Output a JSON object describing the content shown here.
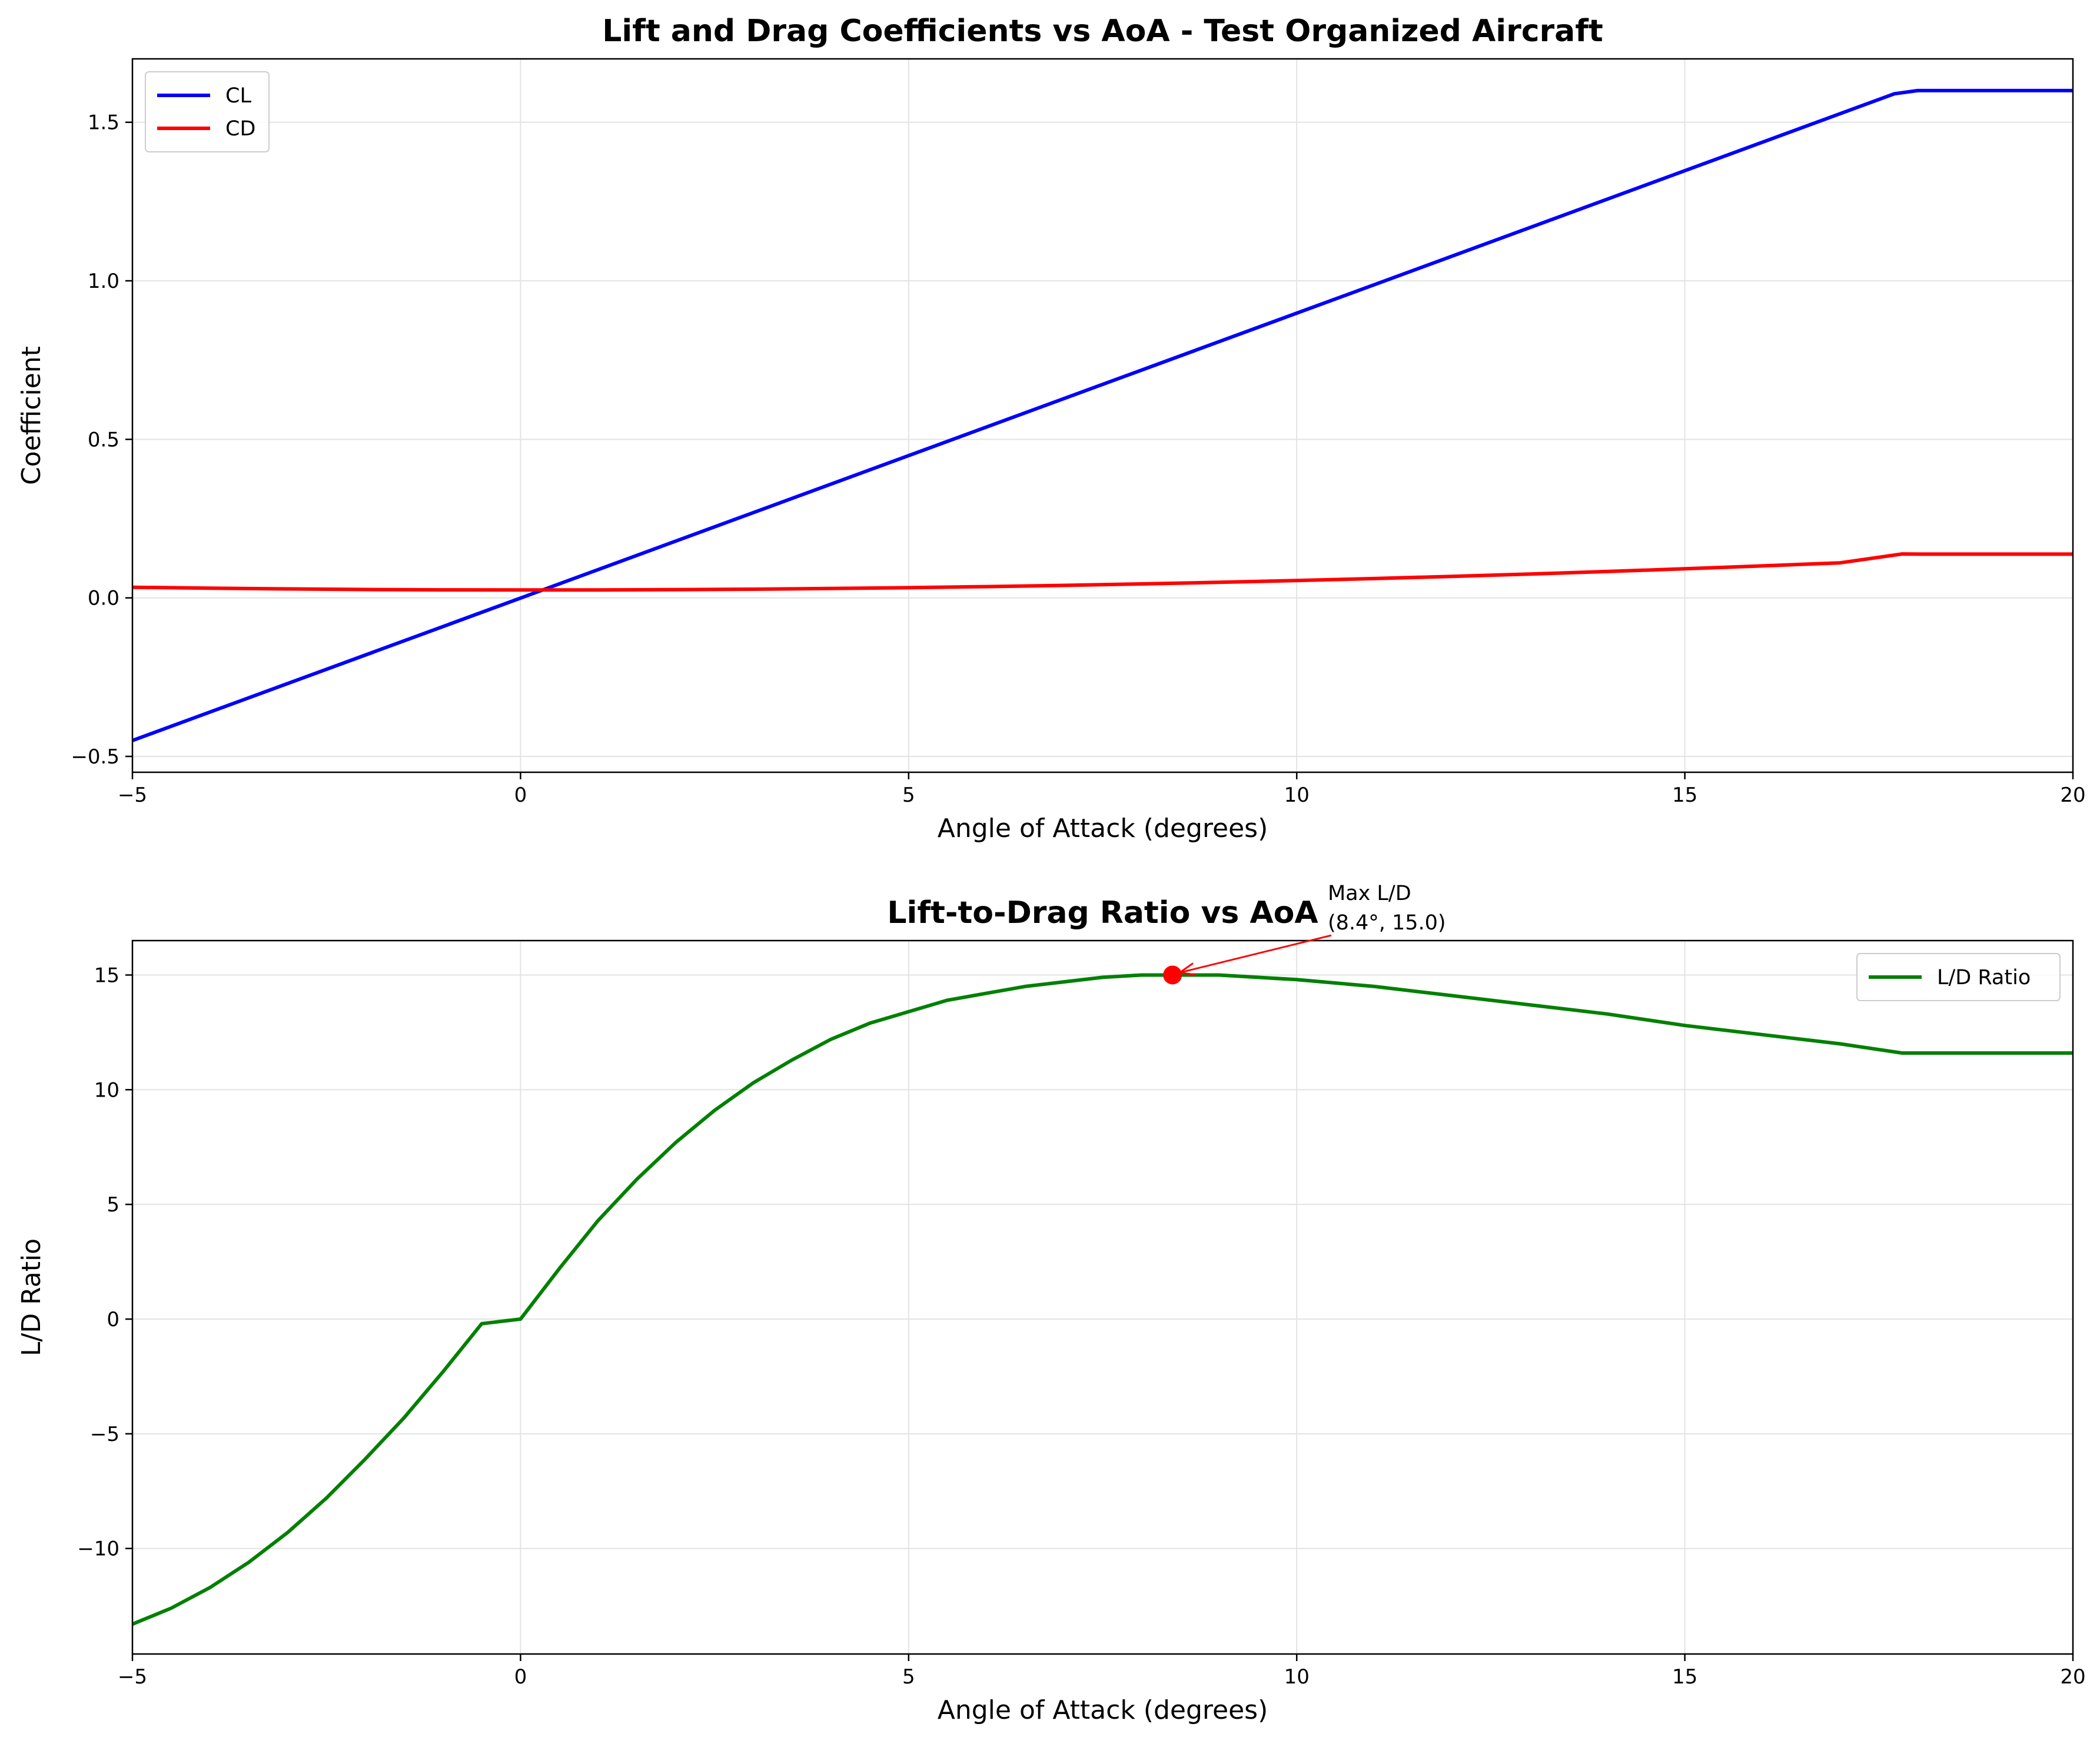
{
  "chart_data": [
    {
      "type": "line",
      "title": "Lift and Drag Coefficients vs AoA - Test Organized Aircraft",
      "xlabel": "Angle of Attack (degrees)",
      "ylabel": "Coefficient",
      "xlim": [
        -5,
        20
      ],
      "ylim": [
        -0.55,
        1.7
      ],
      "xticks": [
        -5,
        0,
        5,
        10,
        15,
        20
      ],
      "xtick_labels": [
        "−5",
        "0",
        "5",
        "10",
        "15",
        "20"
      ],
      "yticks": [
        -0.5,
        0.0,
        0.5,
        1.0,
        1.5
      ],
      "ytick_labels": [
        "−0.5",
        "0.0",
        "0.5",
        "1.0",
        "1.5"
      ],
      "grid": true,
      "legend": "top-left",
      "series": [
        {
          "name": "CL",
          "color": "#0000ff",
          "x": [
            -5,
            17.7,
            18,
            20
          ],
          "y": [
            -0.45,
            1.59,
            1.6,
            1.6
          ]
        },
        {
          "name": "CD",
          "color": "#ff0000",
          "x": [
            -5,
            -4,
            -3,
            -2,
            -1,
            0,
            1,
            2,
            3,
            4,
            5,
            6,
            7,
            8,
            9,
            10,
            11,
            12,
            13,
            14,
            15,
            16,
            17,
            17.8,
            18,
            20
          ],
          "y": [
            0.0335,
            0.0305,
            0.0282,
            0.0265,
            0.0254,
            0.025,
            0.0252,
            0.026,
            0.0274,
            0.0295,
            0.0322,
            0.0355,
            0.0394,
            0.044,
            0.049,
            0.0547,
            0.061,
            0.0678,
            0.0752,
            0.0832,
            0.0917,
            0.1009,
            0.1105,
            0.1385,
            0.138,
            0.138
          ]
        }
      ]
    },
    {
      "type": "line",
      "title": "Lift-to-Drag Ratio vs AoA",
      "xlabel": "Angle of Attack (degrees)",
      "ylabel": "L/D Ratio",
      "xlim": [
        -5,
        20
      ],
      "ylim": [
        -14.6,
        16.5
      ],
      "xticks": [
        -5,
        0,
        5,
        10,
        15,
        20
      ],
      "xtick_labels": [
        "−5",
        "0",
        "5",
        "10",
        "15",
        "20"
      ],
      "yticks": [
        -10,
        -5,
        0,
        5,
        10,
        15
      ],
      "ytick_labels": [
        "−10",
        "−5",
        "0",
        "5",
        "10",
        "15"
      ],
      "grid": true,
      "legend": "top-right",
      "series": [
        {
          "name": "L/D Ratio",
          "color": "#008000",
          "x": [
            -5,
            -4.5,
            -4,
            -3.5,
            -3,
            -2.5,
            -2,
            -1.5,
            -1,
            -0.5,
            0,
            0.5,
            1,
            1.5,
            2,
            2.5,
            3,
            3.5,
            4,
            4.5,
            5,
            5.5,
            6,
            6.5,
            7,
            7.5,
            8,
            8.4,
            9,
            10,
            11,
            12,
            13,
            14,
            15,
            16,
            17,
            17.8,
            18,
            19,
            20
          ],
          "y": [
            -13.3,
            -12.6,
            -11.7,
            -10.6,
            -9.3,
            -7.8,
            -6.1,
            -4.3,
            -2.3,
            -0.2,
            0,
            2.2,
            4.3,
            6.1,
            7.7,
            9.1,
            10.3,
            11.3,
            12.2,
            12.9,
            13.4,
            13.9,
            14.2,
            14.5,
            14.7,
            14.9,
            15.0,
            15.0,
            15.0,
            14.8,
            14.5,
            14.1,
            13.7,
            13.3,
            12.8,
            12.4,
            12.0,
            11.6,
            11.6,
            11.6,
            11.6
          ]
        }
      ],
      "marker": {
        "x": 8.4,
        "y": 15.0,
        "color": "#ff0000"
      },
      "annotation": {
        "line1": "Max L/D",
        "line2": "(8.4°, 15.0)",
        "text_x": 10.4,
        "text_y": 17.5,
        "arrow_color": "#ff0000"
      }
    }
  ]
}
